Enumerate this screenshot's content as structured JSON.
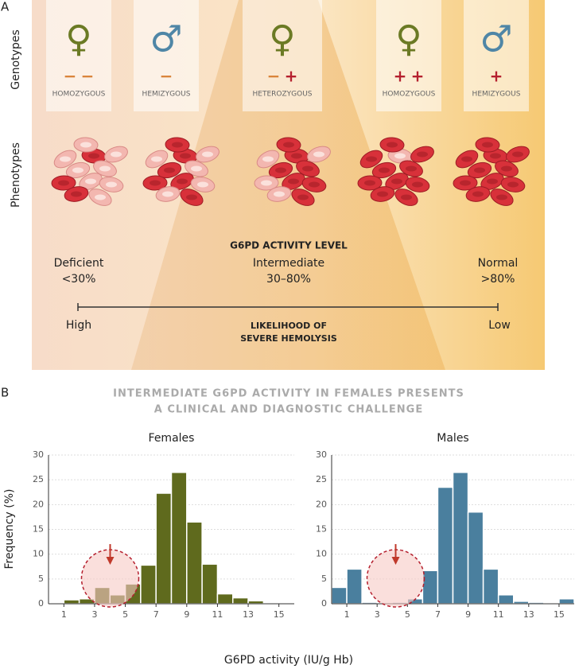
{
  "panel_a": {
    "label": "A",
    "row_labels": [
      "Genotypes",
      "Phenotypes"
    ],
    "genotypes": [
      {
        "symbol": "♀",
        "color": "#6b7a24",
        "signs": [
          {
            "text": "−",
            "color": "#d9843a"
          },
          {
            "text": "−",
            "color": "#d9843a"
          }
        ],
        "label": "HOMOZYGOUS"
      },
      {
        "symbol": "♂",
        "color": "#4f86a6",
        "signs": [
          {
            "text": "−",
            "color": "#d9843a"
          }
        ],
        "label": "HEMIZYGOUS"
      },
      {
        "symbol": "♀",
        "color": "#6b7a24",
        "signs": [
          {
            "text": "−",
            "color": "#d9843a"
          },
          {
            "text": "+",
            "color": "#b5202e"
          }
        ],
        "label": "HETEROZYGOUS"
      },
      {
        "symbol": "♀",
        "color": "#6b7a24",
        "signs": [
          {
            "text": "+",
            "color": "#b5202e"
          },
          {
            "text": "+",
            "color": "#b5202e"
          }
        ],
        "label": "HOMOZYGOUS"
      },
      {
        "symbol": "♂",
        "color": "#4f86a6",
        "signs": [
          {
            "text": "+",
            "color": "#b5202e"
          }
        ],
        "label": "HEMIZYGOUS"
      }
    ],
    "activity_title": "G6PD ACTIVITY LEVEL",
    "levels": [
      {
        "name": "Deficient",
        "range": "<30%"
      },
      {
        "name": "Intermediate",
        "range": "30–80%"
      },
      {
        "name": "Normal",
        "range": ">80%"
      }
    ],
    "hemolysis": {
      "high": "High",
      "low": "Low",
      "title": [
        "LIKELIHOOD OF",
        "SEVERE HEMOLYSIS"
      ]
    }
  },
  "panel_b": {
    "label": "B",
    "title": [
      "INTERMEDIATE G6PD ACTIVITY IN FEMALES PRESENTS",
      "A CLINICAL AND DIAGNOSTIC CHALLENGE"
    ],
    "ylabel": "Frequency (%)",
    "xlabel": "G6PD activity (IU/g Hb)"
  },
  "chart_data": [
    {
      "type": "histogram",
      "title": "Females",
      "color": "#5f6a1d",
      "bins": [
        0,
        1,
        2,
        3,
        4,
        5,
        6,
        7,
        8,
        9,
        10,
        11,
        12,
        13,
        14,
        15,
        16
      ],
      "values": [
        0.2,
        0.8,
        1.0,
        3.3,
        1.8,
        4.0,
        7.8,
        22.3,
        26.5,
        16.5,
        8.0,
        2.0,
        1.2,
        0.6,
        0,
        0
      ],
      "xlim": [
        0,
        16
      ],
      "ylim": [
        0,
        30
      ],
      "xticks": [
        1,
        3,
        5,
        7,
        9,
        11,
        13,
        15
      ],
      "yticks": [
        0,
        5,
        10,
        15,
        20,
        25,
        30
      ],
      "grid": true
    },
    {
      "type": "histogram",
      "title": "Males",
      "color": "#4a7f9e",
      "bins": [
        0,
        1,
        2,
        3,
        4,
        5,
        6,
        7,
        8,
        9,
        10,
        11,
        12,
        13,
        14,
        15,
        16
      ],
      "values": [
        3.3,
        7.0,
        0.3,
        0,
        0.3,
        1.0,
        6.7,
        23.5,
        26.5,
        18.5,
        7.0,
        1.8,
        0.5,
        0.3,
        0.1,
        1.0
      ],
      "xlim": [
        0,
        16
      ],
      "ylim": [
        0,
        30
      ],
      "xticks": [
        1,
        3,
        5,
        7,
        9,
        11,
        13,
        15
      ],
      "yticks": [
        0,
        5,
        10,
        15,
        20,
        25,
        30
      ],
      "grid": true
    }
  ]
}
